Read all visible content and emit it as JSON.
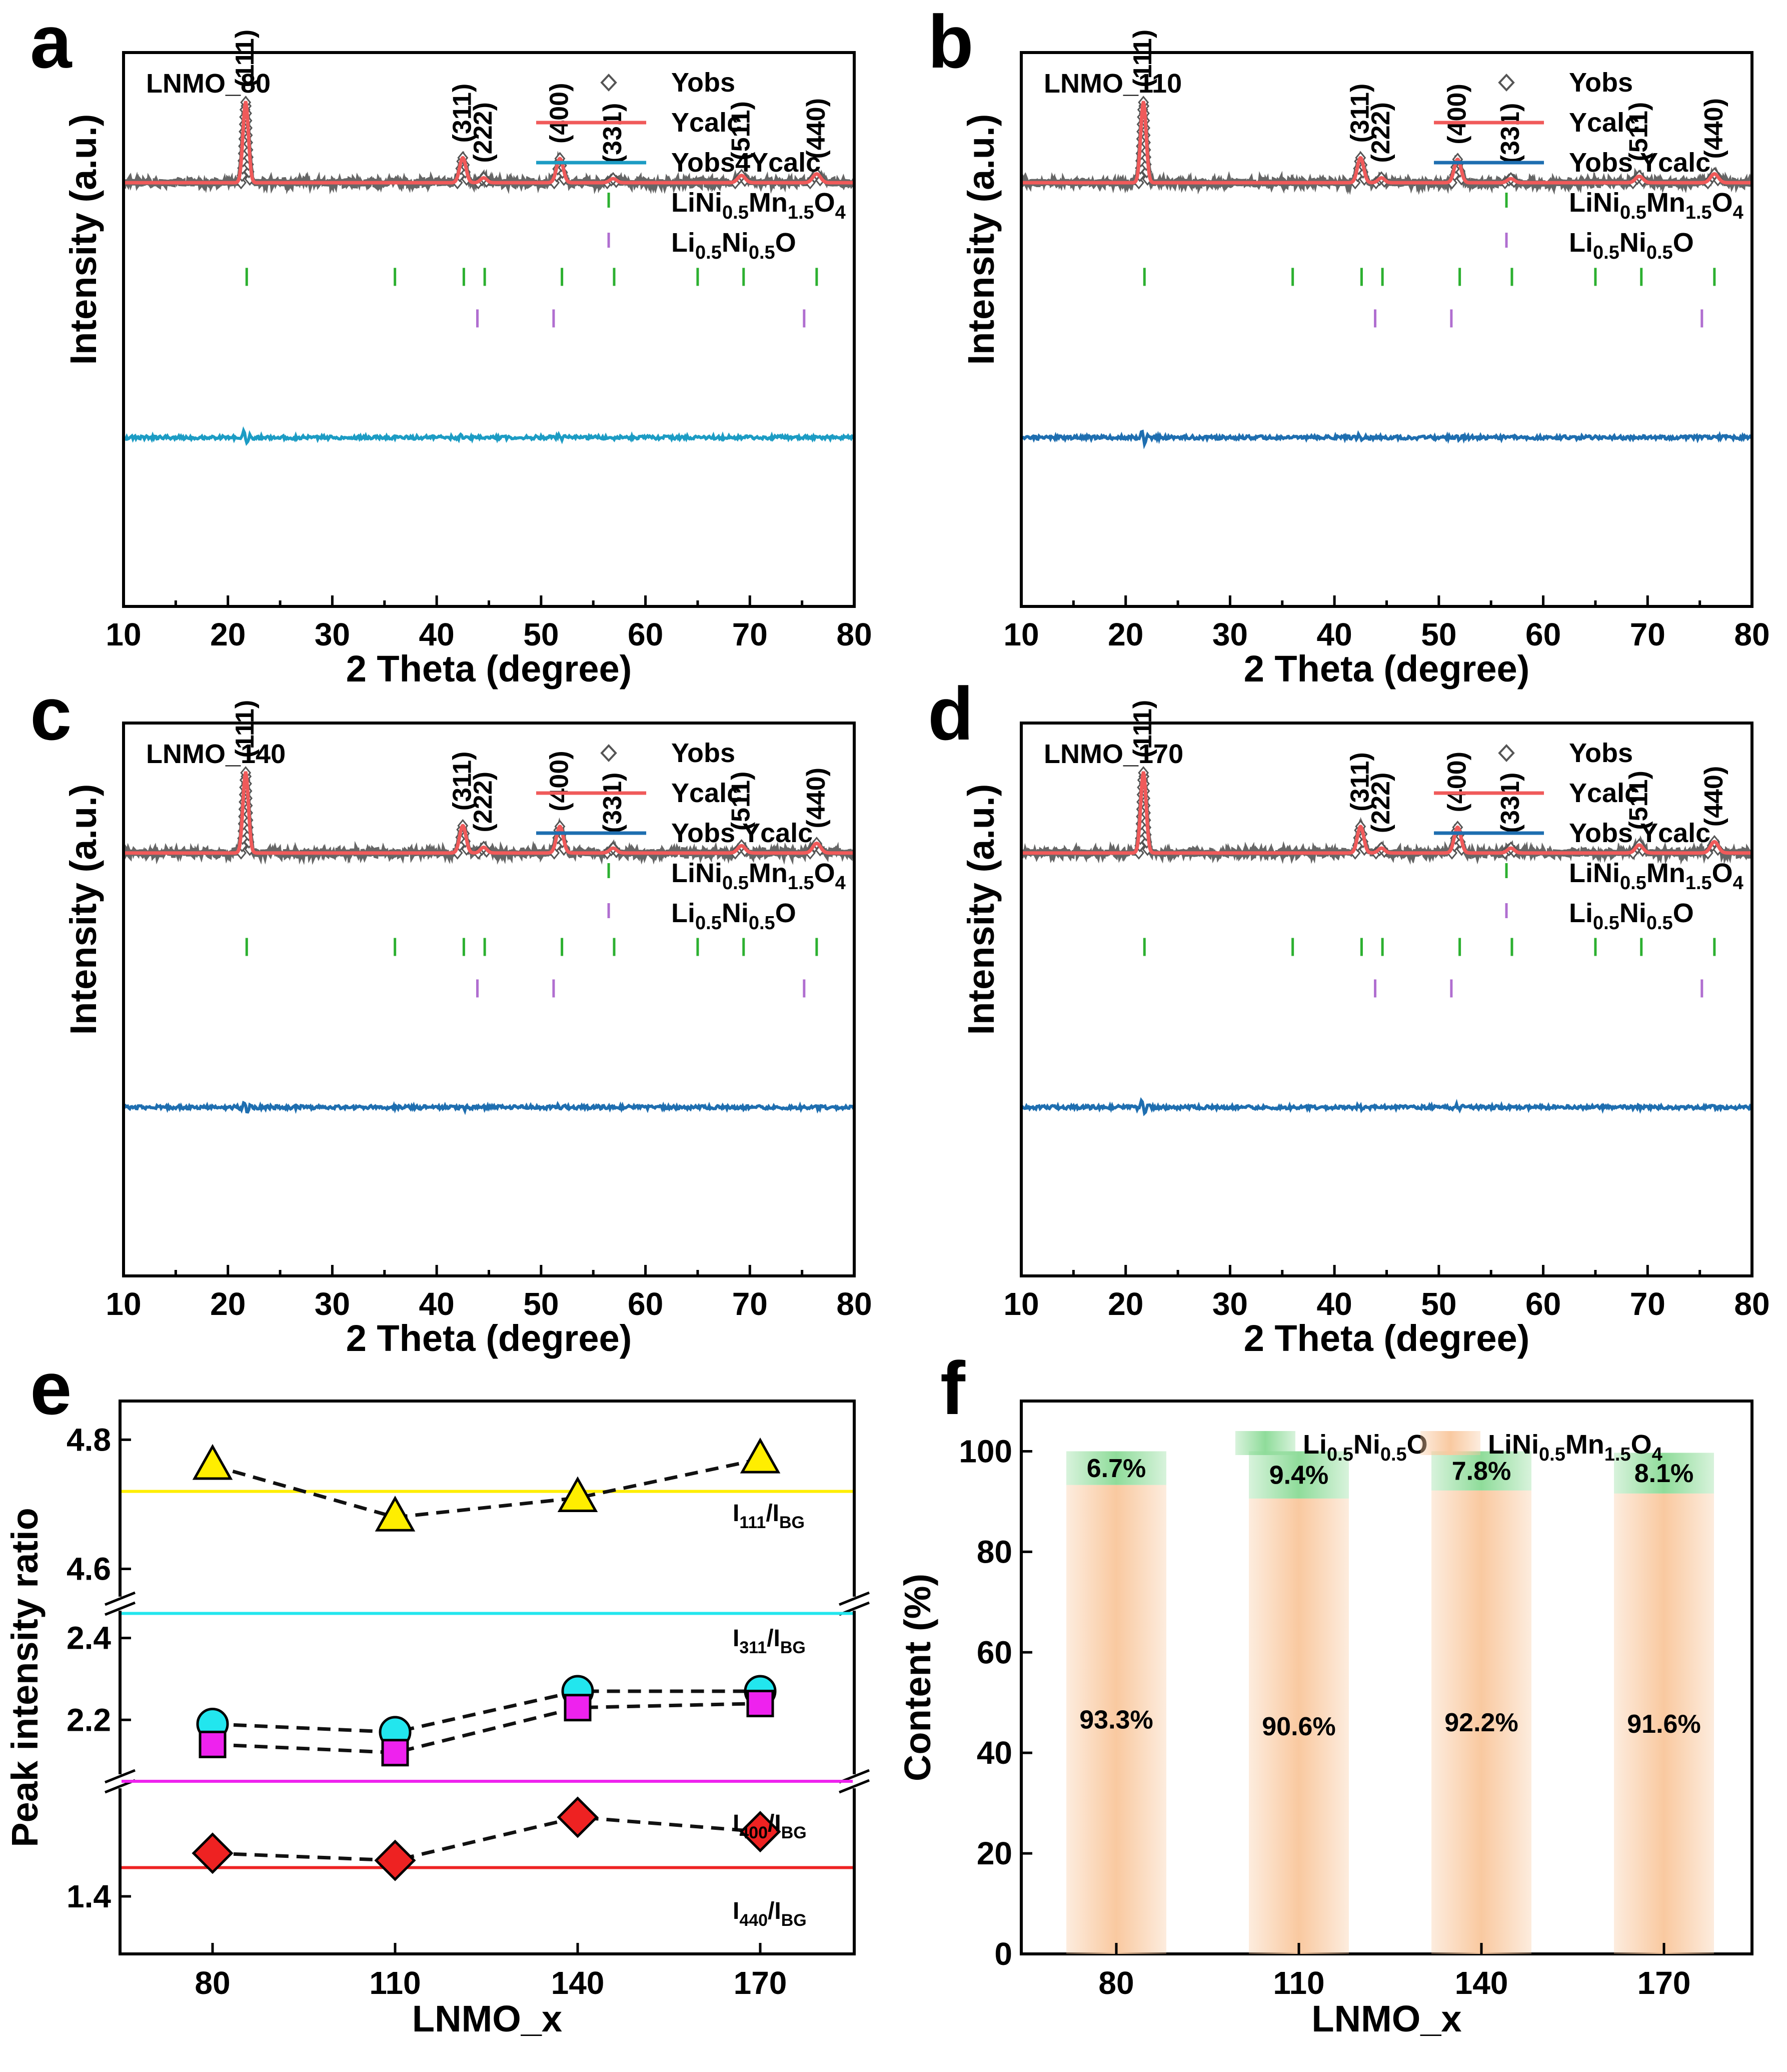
{
  "figure": {
    "panels": [
      {
        "letter": "a"
      },
      {
        "letter": "b"
      },
      {
        "letter": "c"
      },
      {
        "letter": "d"
      },
      {
        "letter": "e"
      },
      {
        "letter": "f"
      }
    ]
  },
  "chart_data": [
    {
      "type": "line",
      "panel": "a",
      "sample_label": "LNMO_80",
      "xlabel": "2 Theta (degree)",
      "ylabel": "Intensity (a.u.)",
      "xlim": [
        10,
        80
      ],
      "xticks": [
        10,
        20,
        30,
        40,
        50,
        60,
        70,
        80
      ],
      "legend": [
        {
          "label": "Yobs",
          "marker": "diamond-open",
          "color": "#555555"
        },
        {
          "label": "Ycalc",
          "line": true,
          "color": "#f05a5a"
        },
        {
          "label": "Yobs4Ycalc",
          "line": true,
          "color": "#1c9cc4"
        },
        {
          "label": "LiNi0.5Mn1.5O4",
          "tick": true,
          "color": "#2cb030"
        },
        {
          "label": "Li0.5Ni0.5O",
          "tick": true,
          "color": "#b06ed0"
        }
      ],
      "peaks": [
        {
          "hkl": "(111)",
          "x": 21.7,
          "height": 1.0
        },
        {
          "hkl": "(311)",
          "x": 42.5,
          "height": 0.31
        },
        {
          "hkl": "(222)",
          "x": 44.5,
          "height": 0.06
        },
        {
          "hkl": "(400)",
          "x": 51.8,
          "height": 0.3
        },
        {
          "hkl": "(331)",
          "x": 56.9,
          "height": 0.05
        },
        {
          "hkl": "(511)",
          "x": 69.2,
          "height": 0.09
        },
        {
          "hkl": "(440)",
          "x": 76.4,
          "height": 0.11
        }
      ],
      "bragg_LNMO": [
        21.8,
        36.0,
        42.6,
        44.6,
        52.0,
        57.0,
        65.0,
        69.4,
        76.4
      ],
      "bragg_LNO": [
        43.9,
        51.2,
        75.2
      ]
    },
    {
      "type": "line",
      "panel": "b",
      "sample_label": "LNMO_110",
      "xlabel": "2 Theta (degree)",
      "ylabel": "Intensity (a.u.)",
      "xlim": [
        10,
        80
      ],
      "xticks": [
        10,
        20,
        30,
        40,
        50,
        60,
        70,
        80
      ],
      "legend": [
        {
          "label": "Yobs",
          "marker": "diamond-open",
          "color": "#555555"
        },
        {
          "label": "Ycalc",
          "line": true,
          "color": "#f05a5a"
        },
        {
          "label": "Yobs  Ycalc",
          "line": true,
          "color": "#1e6eb0"
        },
        {
          "label": "LiNi0.5Mn1.5O4",
          "tick": true,
          "color": "#2cb030"
        },
        {
          "label": "Li0.5Ni0.5O",
          "tick": true,
          "color": "#b06ed0"
        }
      ],
      "peaks": [
        {
          "hkl": "(111)",
          "x": 21.7,
          "height": 1.0
        },
        {
          "hkl": "(311)",
          "x": 42.5,
          "height": 0.31
        },
        {
          "hkl": "(222)",
          "x": 44.5,
          "height": 0.06
        },
        {
          "hkl": "(400)",
          "x": 51.8,
          "height": 0.29
        },
        {
          "hkl": "(331)",
          "x": 56.9,
          "height": 0.05
        },
        {
          "hkl": "(511)",
          "x": 69.2,
          "height": 0.08
        },
        {
          "hkl": "(440)",
          "x": 76.4,
          "height": 0.11
        }
      ],
      "bragg_LNMO": [
        21.8,
        36.0,
        42.6,
        44.6,
        52.0,
        57.0,
        65.0,
        69.4,
        76.4
      ],
      "bragg_LNO": [
        43.9,
        51.2,
        75.2
      ]
    },
    {
      "type": "line",
      "panel": "c",
      "sample_label": "LNMO_140",
      "xlabel": "2 Theta (degree)",
      "ylabel": "Intensity (a.u.)",
      "xlim": [
        10,
        80
      ],
      "xticks": [
        10,
        20,
        30,
        40,
        50,
        60,
        70,
        80
      ],
      "legend": [
        {
          "label": "Yobs",
          "marker": "diamond-open",
          "color": "#555555"
        },
        {
          "label": "Ycalc",
          "line": true,
          "color": "#f05a5a"
        },
        {
          "label": "Yobs  Ycalc",
          "line": true,
          "color": "#1e6eb0"
        },
        {
          "label": "LiNi0.5Mn1.5O4",
          "tick": true,
          "color": "#2cb030"
        },
        {
          "label": "Li0.5Ni0.5O",
          "tick": true,
          "color": "#b06ed0"
        }
      ],
      "peaks": [
        {
          "hkl": "(111)",
          "x": 21.7,
          "height": 1.0
        },
        {
          "hkl": "(311)",
          "x": 42.5,
          "height": 0.34
        },
        {
          "hkl": "(222)",
          "x": 44.5,
          "height": 0.07
        },
        {
          "hkl": "(400)",
          "x": 51.8,
          "height": 0.33
        },
        {
          "hkl": "(331)",
          "x": 56.9,
          "height": 0.06
        },
        {
          "hkl": "(511)",
          "x": 69.2,
          "height": 0.09
        },
        {
          "hkl": "(440)",
          "x": 76.4,
          "height": 0.12
        }
      ],
      "bragg_LNMO": [
        21.8,
        36.0,
        42.6,
        44.6,
        52.0,
        57.0,
        65.0,
        69.4,
        76.4
      ],
      "bragg_LNO": [
        43.9,
        51.2,
        75.2
      ]
    },
    {
      "type": "line",
      "panel": "d",
      "sample_label": "LNMO_170",
      "xlabel": "2 Theta (degree)",
      "ylabel": "Intensity (a.u.)",
      "xlim": [
        10,
        80
      ],
      "xticks": [
        10,
        20,
        30,
        40,
        50,
        60,
        70,
        80
      ],
      "legend": [
        {
          "label": "Yobs",
          "marker": "diamond-open",
          "color": "#555555"
        },
        {
          "label": "Ycalc",
          "line": true,
          "color": "#f05a5a"
        },
        {
          "label": "Yobs  Ycalc",
          "line": true,
          "color": "#1e6eb0"
        },
        {
          "label": "LiNi0.5Mn1.5O4",
          "tick": true,
          "color": "#2cb030"
        },
        {
          "label": "Li0.5Ni0.5O",
          "tick": true,
          "color": "#b06ed0"
        }
      ],
      "peaks": [
        {
          "hkl": "(111)",
          "x": 21.7,
          "height": 1.0
        },
        {
          "hkl": "(311)",
          "x": 42.5,
          "height": 0.33
        },
        {
          "hkl": "(222)",
          "x": 44.5,
          "height": 0.06
        },
        {
          "hkl": "(400)",
          "x": 51.8,
          "height": 0.32
        },
        {
          "hkl": "(331)",
          "x": 56.9,
          "height": 0.06
        },
        {
          "hkl": "(511)",
          "x": 69.2,
          "height": 0.1
        },
        {
          "hkl": "(440)",
          "x": 76.4,
          "height": 0.14
        }
      ],
      "bragg_LNMO": [
        21.8,
        36.0,
        42.6,
        44.6,
        52.0,
        57.0,
        65.0,
        69.4,
        76.4
      ],
      "bragg_LNO": [
        43.9,
        51.2,
        75.2
      ]
    },
    {
      "type": "line",
      "panel": "e",
      "xlabel": "LNMO_x",
      "ylabel": "Peak intensity ratio",
      "categories": [
        "80",
        "110",
        "140",
        "170"
      ],
      "y_segments": [
        {
          "range": [
            1.32,
            1.56
          ],
          "ticks": [
            "1.4"
          ]
        },
        {
          "range": [
            2.05,
            2.49
          ],
          "ticks": [
            "2.2",
            "2.4"
          ]
        },
        {
          "range": [
            4.55,
            4.86
          ],
          "ticks": [
            "4.6",
            "4.8"
          ]
        }
      ],
      "series": [
        {
          "label_main": "I",
          "label_sub1": "111",
          "label_mid": "/I",
          "label_sub2": "BG",
          "marker": "triangle",
          "color": "#ffee00",
          "values": [
            4.76,
            4.68,
            4.71,
            4.77
          ],
          "reference": 4.72
        },
        {
          "label_main": "I",
          "label_sub1": "311",
          "label_mid": "/I",
          "label_sub2": "BG",
          "marker": "circle",
          "color": "#22e6ee",
          "values": [
            2.19,
            2.17,
            2.27,
            2.27
          ],
          "reference": 2.46
        },
        {
          "label_main": "I",
          "label_sub1": "400",
          "label_mid": "/I",
          "label_sub2": "BG",
          "marker": "square",
          "color": "#ee22ee",
          "values": [
            2.14,
            2.12,
            2.23,
            2.24
          ],
          "reference": 2.05
        },
        {
          "label_main": "I",
          "label_sub1": "440",
          "label_mid": "/I",
          "label_sub2": "BG",
          "marker": "diamond",
          "color": "#ee2222",
          "values": [
            1.46,
            1.45,
            1.51,
            1.49
          ],
          "reference": 1.44
        }
      ]
    },
    {
      "type": "bar",
      "panel": "f",
      "xlabel": "LNMO_x",
      "ylabel": "Content (%)",
      "ylim": [
        0,
        110
      ],
      "yticks": [
        0,
        20,
        40,
        60,
        80,
        100
      ],
      "categories": [
        "80",
        "110",
        "140",
        "170"
      ],
      "series": [
        {
          "name": "LiNi0.5Mn1.5O4",
          "color": "#f9c9a0",
          "values": [
            93.3,
            90.6,
            92.2,
            91.6
          ],
          "labels": [
            "93.3%",
            "90.6%",
            "92.2%",
            "91.6%"
          ]
        },
        {
          "name": "Li0.5Ni0.5O",
          "color": "#8fdc9a",
          "values": [
            6.7,
            9.4,
            7.8,
            8.1
          ],
          "labels": [
            "6.7%",
            "9.4%",
            "7.8%",
            "8.1%"
          ]
        }
      ]
    }
  ]
}
